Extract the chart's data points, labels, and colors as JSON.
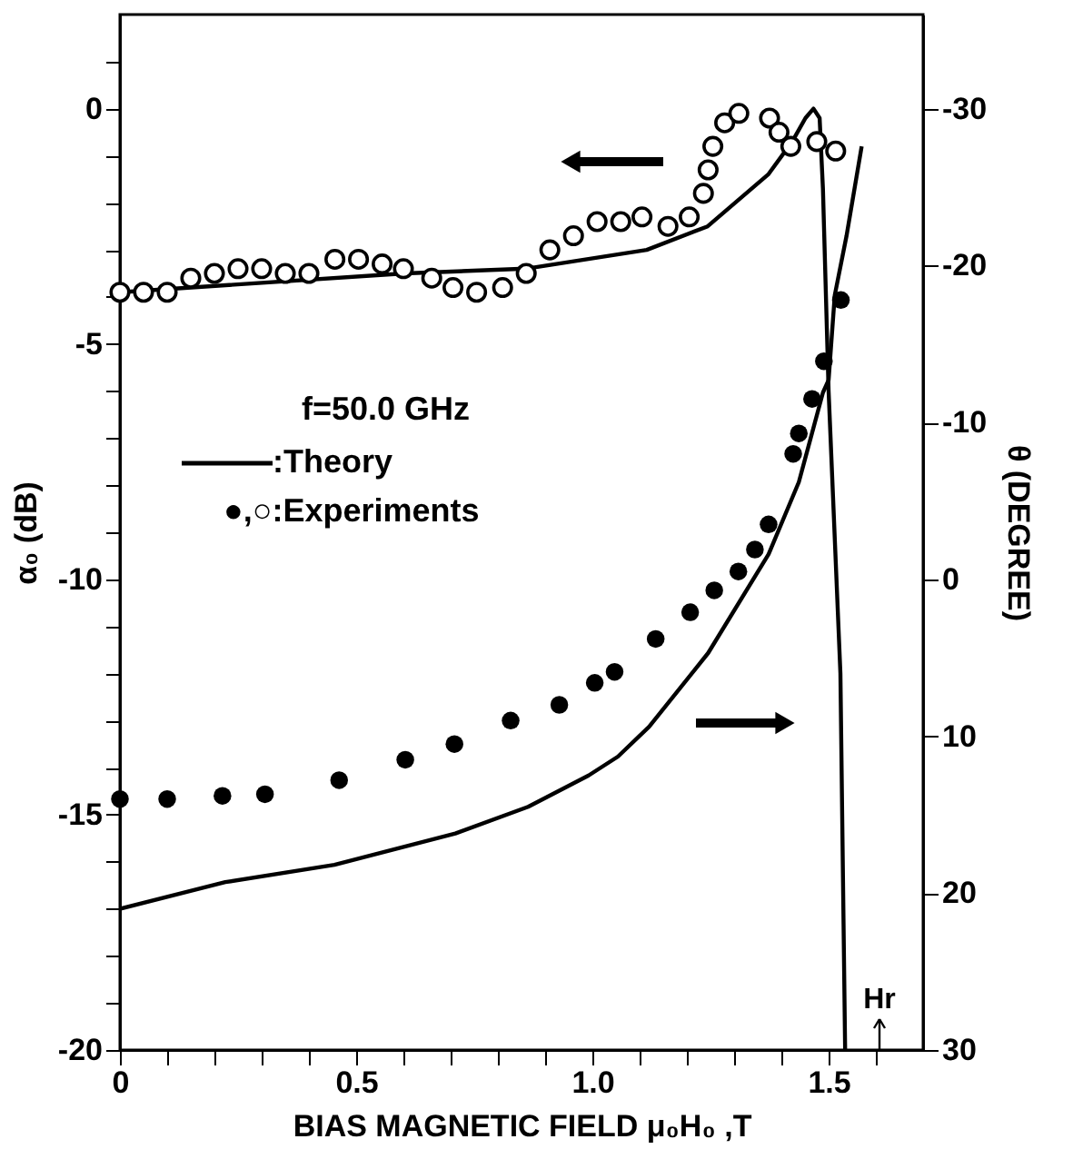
{
  "chart_data": {
    "type": "line",
    "xlabel": "BIAS MAGNETIC FIELD μ₀H₀ ,T",
    "ylabel": "α₀ (dB)",
    "y2label": "θ (DEGREE)",
    "xlim": [
      0,
      1.7
    ],
    "xticks": [
      0,
      {
        "value": 0.1,
        "label": null
      },
      {
        "value": 0.2,
        "label": null
      },
      {
        "value": 0.3,
        "label": null
      },
      {
        "value": 0.4,
        "label": null
      },
      0.5,
      {
        "value": 0.6,
        "label": null
      },
      {
        "value": 0.7,
        "label": null
      },
      {
        "value": 0.8,
        "label": null
      },
      {
        "value": 0.9,
        "label": null
      },
      {
        "value": 1,
        "label": "1.0"
      },
      {
        "value": 1.1,
        "label": null
      },
      {
        "value": 1.2,
        "label": null
      },
      {
        "value": 1.3,
        "label": null
      },
      {
        "value": 1.4,
        "label": null
      },
      1.5,
      {
        "value": 1.6,
        "label": null
      }
    ],
    "ylim": [
      -20,
      2
    ],
    "yticks": [
      -20,
      {
        "value": -19,
        "label": null
      },
      {
        "value": -18,
        "label": null
      },
      {
        "value": -17,
        "label": null
      },
      {
        "value": -16,
        "label": null
      },
      -15,
      {
        "value": -14,
        "label": null
      },
      {
        "value": -13,
        "label": null
      },
      {
        "value": -12,
        "label": null
      },
      {
        "value": -11,
        "label": null
      },
      -10,
      {
        "value": -9,
        "label": null
      },
      {
        "value": -8,
        "label": null
      },
      {
        "value": -7,
        "label": null
      },
      {
        "value": -6,
        "label": null
      },
      -5,
      {
        "value": -4,
        "label": null
      },
      {
        "value": -3,
        "label": null
      },
      {
        "value": -2,
        "label": null
      },
      {
        "value": -1,
        "label": null
      },
      0,
      {
        "value": 1,
        "label": null
      }
    ],
    "y2lim": [
      30,
      -36
    ],
    "y2ticks": [
      30,
      20,
      10,
      0,
      -10,
      -20,
      -30
    ],
    "grid": false,
    "annotations": [
      "f=50.0 GHz",
      ":Theory",
      "●,○:Experiments",
      "Hr"
    ],
    "series": [
      {
        "color": "#000000",
        "line_style": "solid",
        "marker": "none",
        "x": [
          0,
          0.603,
          0.859,
          1.115,
          1.244,
          1.372,
          1.423,
          1.451,
          1.468,
          1.481,
          1.488,
          1.5,
          1.525,
          1.535
        ],
        "values": [
          -3.9,
          -3.5,
          -3.4,
          -3.0,
          -2.5,
          -1.4,
          -0.7,
          -0.2,
          0.0,
          -0.2,
          -1.7,
          -6.0,
          -12.0,
          -20.0
        ]
      },
      {
        "type": "scatter",
        "color": "#000000",
        "marker": "circle",
        "x": [
          0,
          0.05,
          0.1,
          0.15,
          0.2,
          0.25,
          0.3,
          0.35,
          0.4,
          0.455,
          0.505,
          0.555,
          0.6,
          0.66,
          0.705,
          0.755,
          0.81,
          0.86,
          0.91,
          0.96,
          1.01,
          1.06,
          1.105,
          1.16,
          1.205,
          1.235,
          1.245,
          1.255,
          1.28,
          1.31,
          1.375,
          1.395,
          1.42,
          1.475,
          1.515
        ],
        "values": [
          -3.9,
          -3.9,
          -3.9,
          -3.6,
          -3.5,
          -3.4,
          -3.4,
          -3.5,
          -3.5,
          -3.2,
          -3.2,
          -3.3,
          -3.4,
          -3.6,
          -3.8,
          -3.9,
          -3.8,
          -3.5,
          -3.0,
          -2.7,
          -2.4,
          -2.4,
          -2.3,
          -2.5,
          -2.3,
          -1.8,
          -1.3,
          -0.8,
          -0.3,
          -0.1,
          -0.2,
          -0.5,
          -0.8,
          -0.7,
          -0.9
        ]
      },
      {
        "axis": "y2",
        "color": "#000000",
        "line_style": "solid",
        "marker": "none",
        "x": [
          0,
          0.223,
          0.454,
          0.71,
          0.864,
          0.992,
          1.054,
          1.12,
          1.245,
          1.373,
          1.437,
          1.488,
          1.5,
          1.513,
          1.538,
          1.57
        ],
        "values": [
          21,
          19.3,
          18.2,
          16.2,
          14.5,
          12.5,
          11.3,
          9.4,
          4.7,
          -1.6,
          -6.2,
          -11.9,
          -12.7,
          -18.1,
          -21.9,
          -27.6
        ]
      },
      {
        "type": "scatter",
        "axis": "y2",
        "color": "#000000",
        "marker": "circle",
        "x": [
          0,
          0.1,
          0.217,
          0.307,
          0.464,
          0.604,
          0.708,
          0.827,
          0.93,
          1.005,
          1.047,
          1.134,
          1.207,
          1.258,
          1.309,
          1.344,
          1.373,
          1.425,
          1.437,
          1.465,
          1.49,
          1.526
        ],
        "values": [
          14.0,
          14.0,
          13.8,
          13.7,
          12.8,
          11.5,
          10.5,
          9.0,
          8.0,
          6.6,
          5.9,
          3.8,
          2.1,
          0.7,
          -0.5,
          -1.9,
          -3.5,
          -8.0,
          -9.3,
          -11.5,
          -13.9,
          -17.8
        ]
      }
    ]
  }
}
